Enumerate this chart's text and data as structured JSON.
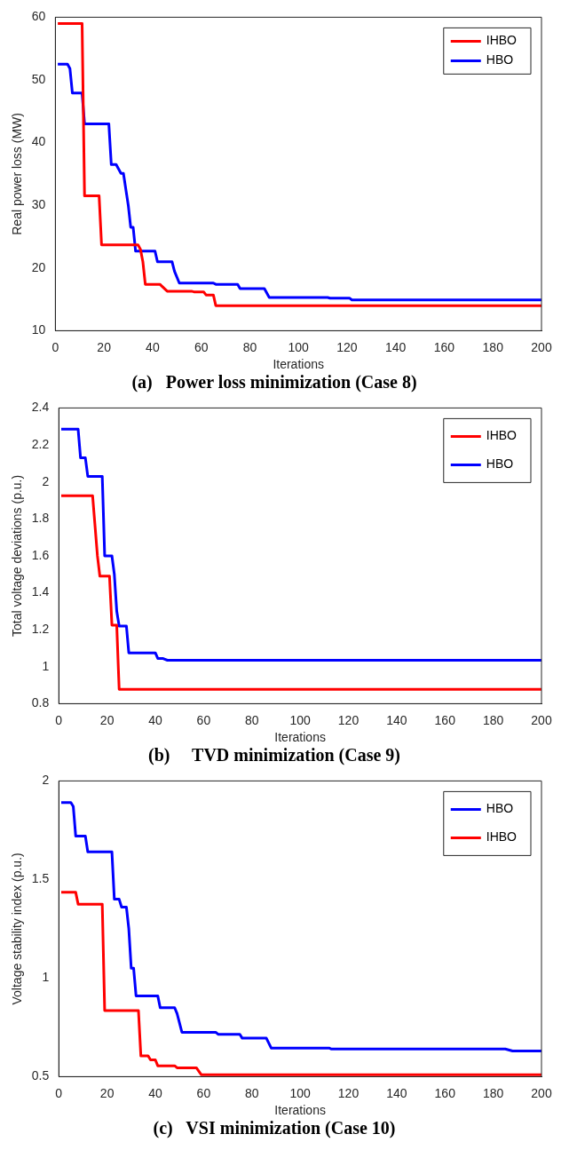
{
  "chart_data": [
    {
      "type": "line",
      "title": "(a)   Power loss minimization (Case 8)",
      "xlabel": "Iterations",
      "ylabel": "Real power loss (MW)",
      "xlim": [
        0,
        200
      ],
      "xticks": [
        0,
        20,
        40,
        60,
        80,
        100,
        120,
        140,
        160,
        180,
        200
      ],
      "ylim": [
        10,
        60
      ],
      "yticks": [
        10,
        20,
        30,
        40,
        50,
        60
      ],
      "legend": "top right",
      "marker": "none",
      "series": [
        {
          "name": "IHBO",
          "color": "#ff0000",
          "x": [
            1,
            11,
            12,
            18,
            19,
            34,
            35,
            36,
            37,
            43,
            46,
            56,
            57,
            61,
            62,
            65,
            66,
            200
          ],
          "values": [
            59,
            59,
            31.5,
            31.5,
            23.7,
            23.7,
            23,
            21,
            17.4,
            17.4,
            16.3,
            16.3,
            16.2,
            16.2,
            15.7,
            15.7,
            14,
            14
          ]
        },
        {
          "name": "HBO",
          "color": "#0000ff",
          "x": [
            1,
            5,
            6,
            7,
            11,
            12,
            22,
            23,
            25,
            27,
            28,
            30,
            31,
            32,
            33,
            41,
            42,
            48,
            49,
            51,
            65,
            66,
            75,
            76,
            86,
            88,
            112,
            113,
            121,
            122,
            200
          ],
          "values": [
            52.5,
            52.5,
            51.8,
            47.9,
            47.9,
            43,
            43,
            36.5,
            36.5,
            35.1,
            35.1,
            30,
            26.5,
            26.5,
            22.7,
            22.7,
            21,
            21,
            19.5,
            17.6,
            17.6,
            17.4,
            17.4,
            16.7,
            16.7,
            15.3,
            15.3,
            15.2,
            15.2,
            14.9,
            14.9
          ]
        }
      ]
    },
    {
      "type": "line",
      "title": "(b)     TVD minimization (Case 9)",
      "xlabel": "Iterations",
      "ylabel": "Total voltage deviations (p.u.)",
      "xlim": [
        0,
        200
      ],
      "xticks": [
        0,
        20,
        40,
        60,
        80,
        100,
        120,
        140,
        160,
        180,
        200
      ],
      "ylim": [
        0.8,
        2.4
      ],
      "yticks": [
        0.8,
        1,
        1.2,
        1.4,
        1.6,
        1.8,
        2,
        2.2,
        2.4
      ],
      "legend": "top right",
      "marker": "none",
      "series": [
        {
          "name": "IHBO",
          "color": "#ff0000",
          "x": [
            1,
            14,
            16,
            17,
            21,
            22,
            24,
            25,
            200
          ],
          "values": [
            1.925,
            1.925,
            1.6,
            1.49,
            1.49,
            1.225,
            1.225,
            0.878,
            0.878
          ]
        },
        {
          "name": "HBO",
          "color": "#0000ff",
          "x": [
            1,
            8,
            9,
            11,
            12,
            18,
            19,
            22,
            23,
            24,
            25,
            28,
            29,
            40,
            41,
            43,
            45,
            200
          ],
          "values": [
            2.285,
            2.285,
            2.13,
            2.13,
            2.03,
            2.03,
            1.6,
            1.6,
            1.5,
            1.3,
            1.22,
            1.22,
            1.075,
            1.075,
            1.045,
            1.045,
            1.035,
            1.035
          ]
        }
      ]
    },
    {
      "type": "line",
      "title": "(c)   VSI minimization (Case 10)",
      "xlabel": "Iterations",
      "ylabel": "Voltage stability index (p.u.)",
      "xlim": [
        0,
        200
      ],
      "xticks": [
        0,
        20,
        40,
        60,
        80,
        100,
        120,
        140,
        160,
        180,
        200
      ],
      "ylim": [
        0.5,
        2
      ],
      "yticks": [
        0.5,
        1,
        1.5,
        2
      ],
      "legend": "top right",
      "marker": "none",
      "series": [
        {
          "name": "HBO",
          "color": "#0000ff",
          "x": [
            1,
            5,
            6,
            7,
            11,
            12,
            22,
            23,
            25,
            26,
            28,
            29,
            30,
            31,
            32,
            41,
            42,
            48,
            49,
            51,
            65,
            66,
            75,
            76,
            86,
            88,
            112,
            113,
            185,
            188,
            200
          ],
          "values": [
            1.89,
            1.89,
            1.87,
            1.72,
            1.72,
            1.64,
            1.64,
            1.4,
            1.4,
            1.36,
            1.36,
            1.25,
            1.05,
            1.05,
            0.91,
            0.91,
            0.85,
            0.85,
            0.82,
            0.725,
            0.725,
            0.715,
            0.715,
            0.695,
            0.695,
            0.645,
            0.645,
            0.64,
            0.64,
            0.63,
            0.63
          ]
        },
        {
          "name": "IHBO",
          "color": "#ff0000",
          "x": [
            1,
            7,
            8,
            18,
            19,
            33,
            34,
            37,
            38,
            40,
            41,
            48,
            49,
            57,
            59,
            200
          ],
          "values": [
            1.435,
            1.435,
            1.375,
            1.375,
            0.835,
            0.835,
            0.605,
            0.605,
            0.585,
            0.585,
            0.555,
            0.555,
            0.545,
            0.545,
            0.51,
            0.51
          ]
        }
      ]
    }
  ]
}
